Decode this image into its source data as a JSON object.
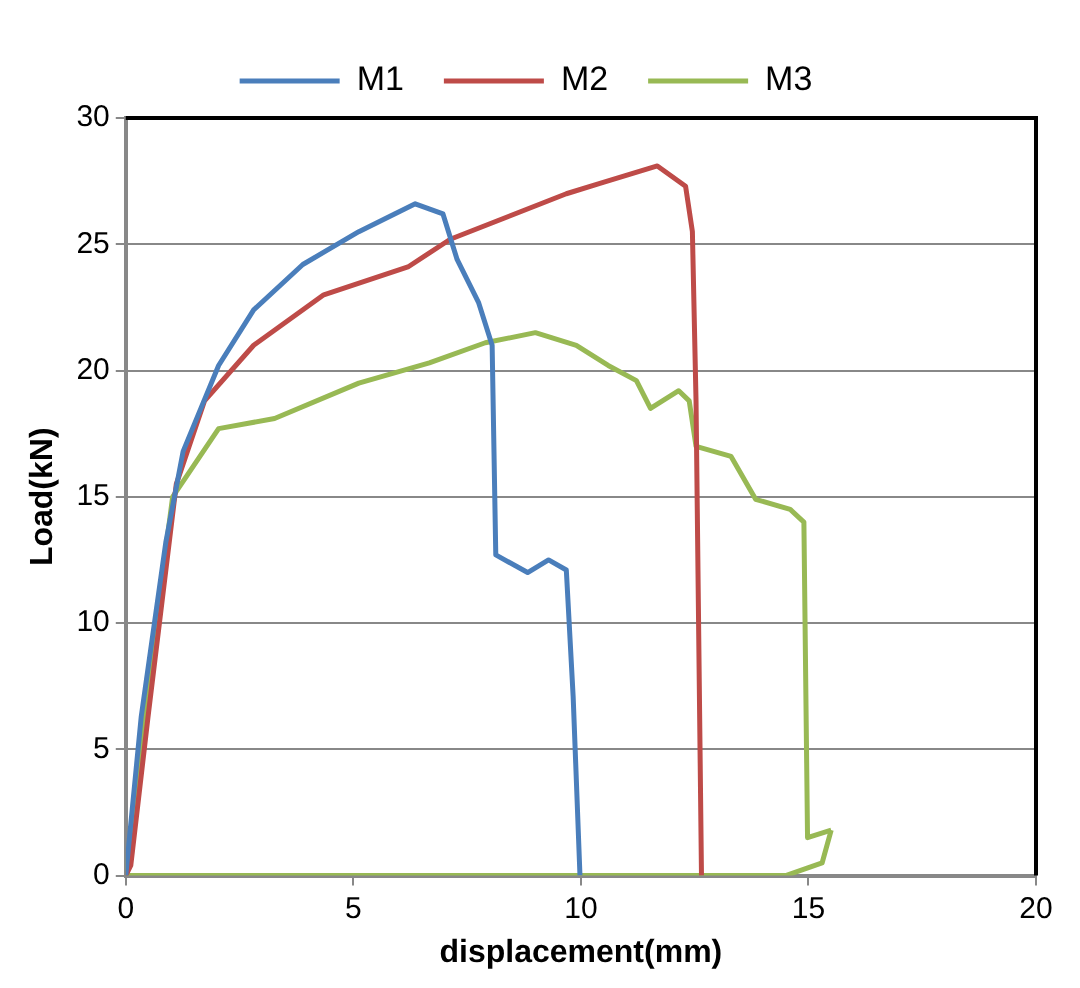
{
  "chart_data": {
    "type": "line",
    "xlabel": "displacement(mm)",
    "ylabel": "Load(kN)",
    "xlim": [
      0,
      20
    ],
    "xticks": [
      0,
      5,
      10,
      15,
      20
    ],
    "ylim": [
      0,
      30
    ],
    "yticks": [
      0,
      5,
      10,
      15,
      20,
      25,
      30
    ],
    "grid": "y",
    "legend": "top",
    "marker": "none",
    "line_style": "solid",
    "series": [
      {
        "name": "M1",
        "color": "#4a7ebb",
        "x": [
          0,
          0.34,
          0.88,
          1.26,
          2.04,
          2.81,
          3.89,
          5.12,
          6.36,
          6.97,
          7.28,
          7.75,
          8.05,
          8.13,
          8.83,
          9.29,
          9.68,
          9.83,
          9.98
        ],
        "values": [
          0,
          6.3,
          13.2,
          16.8,
          20.2,
          22.4,
          24.2,
          25.5,
          26.6,
          26.2,
          24.4,
          22.7,
          21,
          12.7,
          12,
          12.5,
          12.1,
          7.1,
          0
        ]
      },
      {
        "name": "M2",
        "color": "#be4b48",
        "x": [
          0,
          0.11,
          0.49,
          1.11,
          1.73,
          2.81,
          4.35,
          6.2,
          7.13,
          9.68,
          10.4,
          11.68,
          12.3,
          12.45,
          12.53,
          12.65
        ],
        "values": [
          0,
          0.4,
          6.3,
          15.5,
          18.8,
          21,
          23,
          24.1,
          25.2,
          27,
          27.4,
          28.1,
          27.3,
          25.5,
          18.8,
          0
        ]
      },
      {
        "name": "M3",
        "color": "#98b954",
        "x": [
          0,
          0.49,
          1.03,
          2.04,
          3.27,
          5.12,
          6.67,
          7.9,
          9,
          9.9,
          10.6,
          11.22,
          11.53,
          12.15,
          12.38,
          12.53,
          13.3,
          13.84,
          14.6,
          14.9,
          14.98,
          15.5
        ],
        "values": [
          0,
          7.6,
          15,
          17.7,
          18.1,
          19.5,
          20.3,
          21.1,
          21.5,
          21,
          20.2,
          19.6,
          18.5,
          19.2,
          18.8,
          17,
          16.6,
          14.9,
          14.5,
          14,
          1.5,
          1.8
        ]
      },
      {
        "color": "#98b954",
        "x": [
          0,
          14.5,
          15.3,
          15.5
        ],
        "values": [
          0,
          0,
          0.5,
          1.8
        ]
      }
    ]
  }
}
